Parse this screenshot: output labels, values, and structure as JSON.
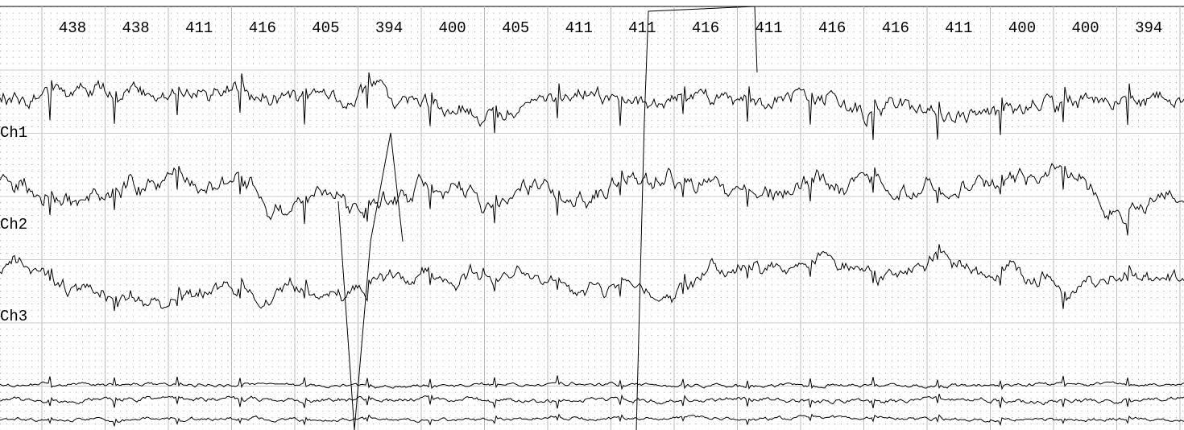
{
  "beat_intervals": [
    "438",
    "438",
    "411",
    "416",
    "405",
    "394",
    "400",
    "405",
    "411",
    "411",
    "416",
    "411",
    "416",
    "416",
    "411",
    "400",
    "400",
    "394"
  ],
  "channels": [
    "Ch1",
    "Ch2",
    "Ch3"
  ]
}
